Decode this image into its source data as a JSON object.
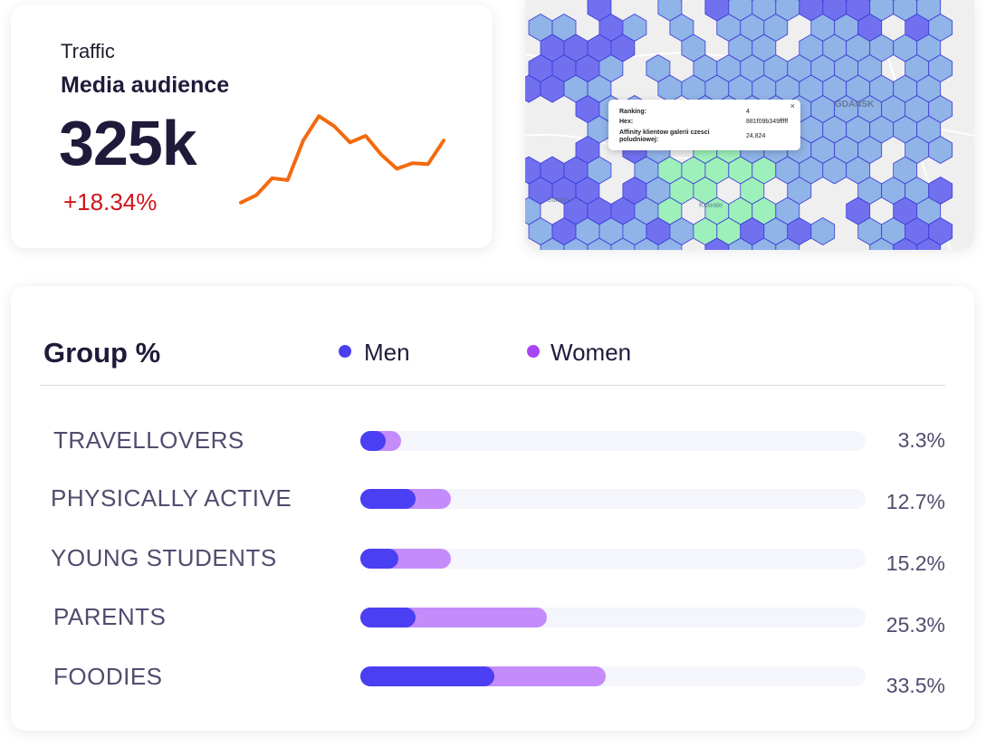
{
  "traffic": {
    "label": "Traffic",
    "title": "Media audience",
    "value": "325k",
    "change": "+18.34%",
    "sparkline": [
      4,
      12,
      30,
      28,
      70,
      96,
      85,
      68,
      75,
      55,
      40,
      46,
      45,
      70
    ],
    "line_color": "#f36a0e"
  },
  "map": {
    "tooltip": {
      "close": "×",
      "rows": [
        {
          "key": "Ranking:",
          "value": "4"
        },
        {
          "key": "Hex:",
          "value": "881f09b349fffff"
        },
        {
          "key": "Affinity klientow galerii czesci poludniowej:",
          "value": "24,824"
        }
      ]
    },
    "place_labels": [
      "GDANSK",
      "Sulmin",
      "Kowale"
    ],
    "colors": {
      "high": "#8ff0b0",
      "mid": "#7fa8e6",
      "low": "#5a5af0"
    }
  },
  "group": {
    "title": "Group %",
    "legend": [
      {
        "label": "Men",
        "color": "#4b3ff3"
      },
      {
        "label": "Women",
        "color": "#a845f7"
      }
    ],
    "rows": [
      {
        "label": "TRAVELLOVERS",
        "percent": "3.3%",
        "men_fraction": 0.05,
        "total_fraction": 0.08
      },
      {
        "label": "PHYSICALLY ACTIVE",
        "percent": "12.7%",
        "men_fraction": 0.11,
        "total_fraction": 0.18
      },
      {
        "label": "YOUNG STUDENTS",
        "percent": "15.2%",
        "men_fraction": 0.075,
        "total_fraction": 0.18
      },
      {
        "label": "PARENTS",
        "percent": "25.3%",
        "men_fraction": 0.11,
        "total_fraction": 0.37
      },
      {
        "label": "FOODIES",
        "percent": "33.5%",
        "men_fraction": 0.265,
        "total_fraction": 0.485
      }
    ]
  }
}
